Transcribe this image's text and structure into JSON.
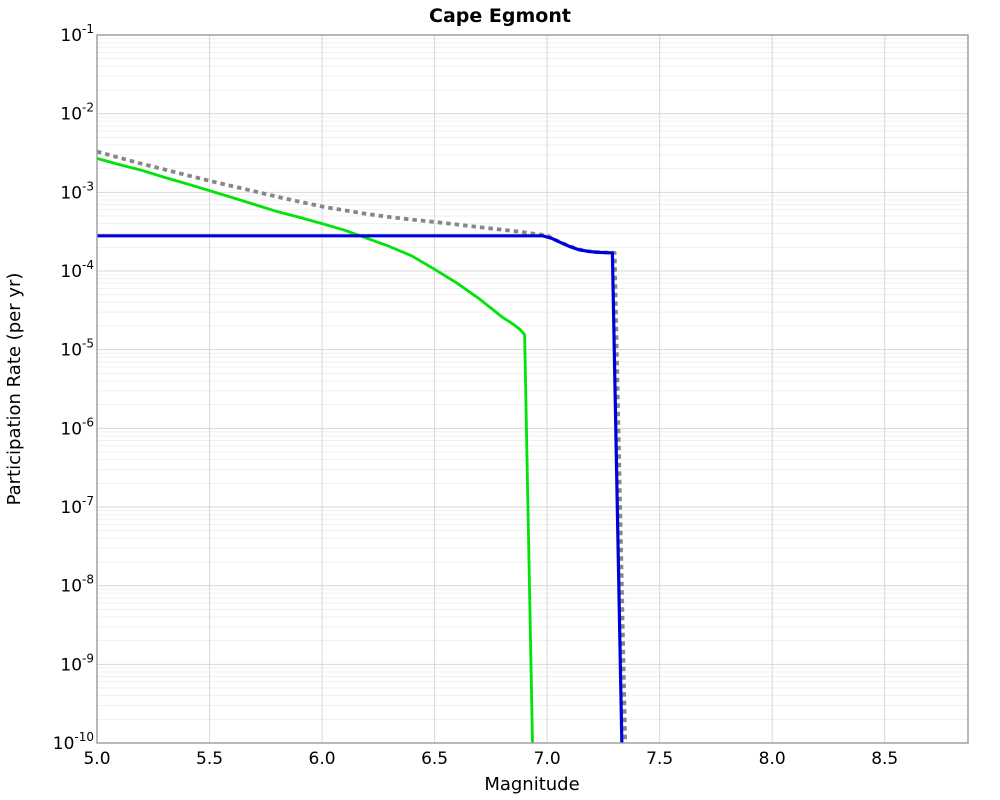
{
  "accent_colors": {
    "grid_major": "#d7d7d7",
    "grid_minor": "#efefef",
    "plot_border": "#999999",
    "background": "#ffffff",
    "text": "#000000"
  },
  "chart_data": {
    "type": "line",
    "title": "Cape Egmont",
    "xlabel": "Magnitude",
    "ylabel": "Participation Rate (per yr)",
    "xlim": [
      5.0,
      8.87
    ],
    "ylim_log10": [
      -10,
      -1
    ],
    "x_ticks": [
      5.0,
      5.5,
      6.0,
      6.5,
      7.0,
      7.5,
      8.0,
      8.5
    ],
    "x_tick_labels": [
      "5.0",
      "5.5",
      "6.0",
      "6.5",
      "7.0",
      "7.5",
      "8.0",
      "8.5"
    ],
    "y_tick_exponents": [
      "-1",
      "-2",
      "-3",
      "-4",
      "-5",
      "-6",
      "-7",
      "-8",
      "-9",
      "-10"
    ],
    "grid": true,
    "legend": null,
    "series": [
      {
        "name": "gutenberg-richter-dotted",
        "style": "dotted",
        "color": "#878787",
        "width": 3.8,
        "dash": [
          4.5,
          4
        ],
        "points": [
          [
            5.0,
            0.0033
          ],
          [
            5.1,
            0.00275
          ],
          [
            5.2,
            0.0023
          ],
          [
            5.3,
            0.00195
          ],
          [
            5.4,
            0.00165
          ],
          [
            5.5,
            0.0014
          ],
          [
            5.6,
            0.0012
          ],
          [
            5.7,
            0.00103
          ],
          [
            5.8,
            0.00088
          ],
          [
            5.9,
            0.00076
          ],
          [
            6.0,
            0.00066
          ],
          [
            6.1,
            0.00059
          ],
          [
            6.2,
            0.00053
          ],
          [
            6.3,
            0.000485
          ],
          [
            6.4,
            0.00045
          ],
          [
            6.5,
            0.00042
          ],
          [
            6.6,
            0.00039
          ],
          [
            6.7,
            0.00036
          ],
          [
            6.8,
            0.000335
          ],
          [
            6.9,
            0.00031
          ],
          [
            6.95,
            0.000295
          ],
          [
            7.0,
            0.000285
          ],
          [
            7.02,
            0.000262
          ],
          [
            7.06,
            0.000232
          ],
          [
            7.1,
            0.000207
          ],
          [
            7.14,
            0.000188
          ],
          [
            7.18,
            0.000179
          ],
          [
            7.22,
            0.000174
          ],
          [
            7.26,
            0.000172
          ],
          [
            7.3,
            0.00017
          ],
          [
            7.347,
            1e-10
          ]
        ]
      },
      {
        "name": "green-curve",
        "style": "solid",
        "color": "#00e30b",
        "width": 2.8,
        "dash": null,
        "points": [
          [
            5.0,
            0.0027
          ],
          [
            5.1,
            0.00225
          ],
          [
            5.2,
            0.0019
          ],
          [
            5.3,
            0.00155
          ],
          [
            5.4,
            0.00128
          ],
          [
            5.5,
            0.00105
          ],
          [
            5.6,
            0.00086
          ],
          [
            5.7,
            0.0007
          ],
          [
            5.8,
            0.00057
          ],
          [
            5.9,
            0.00048
          ],
          [
            6.0,
            0.0004
          ],
          [
            6.1,
            0.00033
          ],
          [
            6.2,
            0.00026
          ],
          [
            6.3,
            0.000205
          ],
          [
            6.4,
            0.000155
          ],
          [
            6.5,
            0.000105
          ],
          [
            6.6,
            7e-05
          ],
          [
            6.7,
            4.4e-05
          ],
          [
            6.8,
            2.6e-05
          ],
          [
            6.85,
            2.1e-05
          ],
          [
            6.88,
            1.8e-05
          ],
          [
            6.9,
            1.55e-05
          ],
          [
            6.935,
            1e-10
          ]
        ]
      },
      {
        "name": "blue-floor-curve",
        "style": "solid",
        "color": "#0000dd",
        "width": 3.2,
        "dash": null,
        "points": [
          [
            5.0,
            0.00028
          ],
          [
            6.98,
            0.00028
          ],
          [
            7.02,
            0.00026
          ],
          [
            7.06,
            0.00023
          ],
          [
            7.1,
            0.000205
          ],
          [
            7.14,
            0.000187
          ],
          [
            7.18,
            0.000178
          ],
          [
            7.22,
            0.000173
          ],
          [
            7.26,
            0.000171
          ],
          [
            7.29,
            0.00017
          ],
          [
            7.332,
            1e-10
          ]
        ]
      }
    ]
  }
}
